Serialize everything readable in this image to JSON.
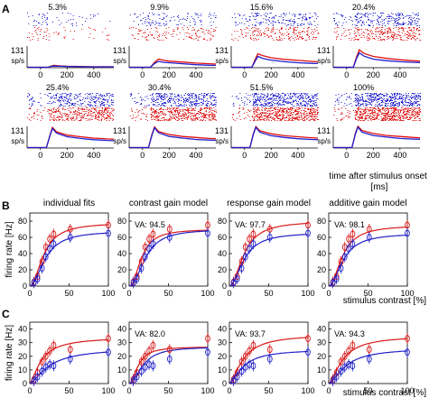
{
  "panel_labels": [
    "A",
    "B",
    "C"
  ],
  "chart_data": [
    {
      "type": "line",
      "panel": "A",
      "title": "",
      "ylabel_value": "131",
      "ylabel_unit": "sp/s",
      "xlabel": "time after stimulus onset [ms]",
      "x_ticks": [
        0,
        200,
        400
      ],
      "xlim": [
        -100,
        550
      ],
      "ylim": [
        0,
        131
      ],
      "colors": {
        "series1": "#1f1fd0",
        "series2": "#e01010"
      },
      "subpanels": [
        {
          "contrast": "5.3%",
          "raster_visible": true,
          "series1": [
            [
              -100,
              3
            ],
            [
              0,
              3
            ],
            [
              60,
              3
            ],
            [
              80,
              8
            ],
            [
              100,
              10
            ],
            [
              150,
              9
            ],
            [
              200,
              7
            ],
            [
              300,
              6
            ],
            [
              400,
              5
            ],
            [
              500,
              5
            ],
            [
              550,
              5
            ]
          ],
          "series2": [
            [
              -100,
              3
            ],
            [
              0,
              3
            ],
            [
              60,
              3
            ],
            [
              80,
              10
            ],
            [
              100,
              14
            ],
            [
              150,
              11
            ],
            [
              200,
              9
            ],
            [
              300,
              7
            ],
            [
              400,
              6
            ],
            [
              500,
              6
            ],
            [
              550,
              6
            ]
          ]
        },
        {
          "contrast": "9.9%",
          "raster_visible": true,
          "series1": [
            [
              -100,
              3
            ],
            [
              0,
              3
            ],
            [
              60,
              3
            ],
            [
              90,
              25
            ],
            [
              120,
              38
            ],
            [
              160,
              32
            ],
            [
              200,
              30
            ],
            [
              300,
              24
            ],
            [
              400,
              18
            ],
            [
              500,
              15
            ],
            [
              550,
              14
            ]
          ],
          "series2": [
            [
              -100,
              3
            ],
            [
              0,
              3
            ],
            [
              60,
              3
            ],
            [
              90,
              32
            ],
            [
              120,
              52
            ],
            [
              160,
              44
            ],
            [
              200,
              40
            ],
            [
              300,
              34
            ],
            [
              400,
              28
            ],
            [
              500,
              24
            ],
            [
              550,
              22
            ]
          ]
        },
        {
          "contrast": "15.6%",
          "raster_visible": true,
          "series1": [
            [
              -100,
              3
            ],
            [
              0,
              3
            ],
            [
              55,
              3
            ],
            [
              80,
              40
            ],
            [
              100,
              68
            ],
            [
              140,
              55
            ],
            [
              200,
              46
            ],
            [
              300,
              36
            ],
            [
              400,
              30
            ],
            [
              500,
              26
            ],
            [
              550,
              25
            ]
          ],
          "series2": [
            [
              -100,
              3
            ],
            [
              0,
              3
            ],
            [
              55,
              3
            ],
            [
              80,
              50
            ],
            [
              100,
              84
            ],
            [
              140,
              72
            ],
            [
              200,
              60
            ],
            [
              300,
              50
            ],
            [
              400,
              44
            ],
            [
              500,
              38
            ],
            [
              550,
              36
            ]
          ]
        },
        {
          "contrast": "20.4%",
          "raster_visible": true,
          "series1": [
            [
              -100,
              3
            ],
            [
              0,
              3
            ],
            [
              50,
              3
            ],
            [
              75,
              55
            ],
            [
              95,
              90
            ],
            [
              130,
              70
            ],
            [
              200,
              52
            ],
            [
              300,
              42
            ],
            [
              400,
              36
            ],
            [
              500,
              32
            ],
            [
              550,
              31
            ]
          ],
          "series2": [
            [
              -100,
              3
            ],
            [
              0,
              3
            ],
            [
              50,
              3
            ],
            [
              75,
              65
            ],
            [
              95,
              108
            ],
            [
              130,
              86
            ],
            [
              200,
              68
            ],
            [
              300,
              56
            ],
            [
              400,
              48
            ],
            [
              500,
              42
            ],
            [
              550,
              40
            ]
          ]
        },
        {
          "contrast": "25.4%",
          "raster_visible": true,
          "series1": [
            [
              -100,
              3
            ],
            [
              0,
              3
            ],
            [
              45,
              3
            ],
            [
              70,
              70
            ],
            [
              90,
              118
            ],
            [
              120,
              90
            ],
            [
              200,
              68
            ],
            [
              300,
              58
            ],
            [
              400,
              50
            ],
            [
              500,
              46
            ],
            [
              550,
              45
            ]
          ],
          "series2": [
            [
              -100,
              3
            ],
            [
              0,
              3
            ],
            [
              45,
              3
            ],
            [
              70,
              75
            ],
            [
              90,
              125
            ],
            [
              120,
              98
            ],
            [
              200,
              78
            ],
            [
              300,
              68
            ],
            [
              400,
              60
            ],
            [
              500,
              55
            ],
            [
              550,
              54
            ]
          ]
        },
        {
          "contrast": "30.4%",
          "raster_visible": true,
          "series1": [
            [
              -100,
              3
            ],
            [
              0,
              3
            ],
            [
              45,
              3
            ],
            [
              70,
              75
            ],
            [
              90,
              122
            ],
            [
              120,
              92
            ],
            [
              200,
              70
            ],
            [
              300,
              60
            ],
            [
              400,
              52
            ],
            [
              500,
              48
            ],
            [
              550,
              47
            ]
          ],
          "series2": [
            [
              -100,
              3
            ],
            [
              0,
              3
            ],
            [
              45,
              3
            ],
            [
              70,
              80
            ],
            [
              90,
              128
            ],
            [
              120,
              100
            ],
            [
              200,
              82
            ],
            [
              300,
              70
            ],
            [
              400,
              64
            ],
            [
              500,
              58
            ],
            [
              550,
              57
            ]
          ]
        },
        {
          "contrast": "51.5%",
          "raster_visible": true,
          "series1": [
            [
              -100,
              3
            ],
            [
              0,
              3
            ],
            [
              40,
              3
            ],
            [
              65,
              80
            ],
            [
              85,
              125
            ],
            [
              115,
              95
            ],
            [
              200,
              74
            ],
            [
              300,
              64
            ],
            [
              400,
              56
            ],
            [
              500,
              52
            ],
            [
              550,
              51
            ]
          ],
          "series2": [
            [
              -100,
              3
            ],
            [
              0,
              3
            ],
            [
              40,
              3
            ],
            [
              65,
              85
            ],
            [
              85,
              130
            ],
            [
              115,
              104
            ],
            [
              200,
              86
            ],
            [
              300,
              74
            ],
            [
              400,
              68
            ],
            [
              500,
              62
            ],
            [
              550,
              60
            ]
          ]
        },
        {
          "contrast": "100%",
          "raster_visible": true,
          "series1": [
            [
              -100,
              3
            ],
            [
              0,
              3
            ],
            [
              40,
              3
            ],
            [
              65,
              82
            ],
            [
              85,
              126
            ],
            [
              115,
              96
            ],
            [
              200,
              76
            ],
            [
              300,
              66
            ],
            [
              400,
              58
            ],
            [
              500,
              54
            ],
            [
              550,
              53
            ]
          ],
          "series2": [
            [
              -100,
              3
            ],
            [
              0,
              3
            ],
            [
              40,
              3
            ],
            [
              65,
              88
            ],
            [
              85,
              131
            ],
            [
              115,
              106
            ],
            [
              200,
              88
            ],
            [
              300,
              76
            ],
            [
              400,
              70
            ],
            [
              500,
              64
            ],
            [
              550,
              62
            ]
          ]
        }
      ]
    },
    {
      "type": "scatter",
      "panel": "B",
      "ylabel": "firing rate [Hz]",
      "xlabel": "stimulus contrast [%]",
      "xlim": [
        0,
        100
      ],
      "ylim": [
        0,
        90
      ],
      "x_ticks": [
        0,
        50,
        100
      ],
      "y_ticks": [
        0,
        20,
        40,
        60,
        80
      ],
      "x": [
        5.3,
        9.9,
        15.6,
        20.4,
        25.4,
        30.4,
        51.5,
        100
      ],
      "subplots": [
        {
          "title": "individual fits",
          "va": "",
          "red_points": [
            5,
            12,
            30,
            48,
            58,
            64,
            70,
            75
          ],
          "blue_points": [
            4,
            9,
            22,
            36,
            46,
            52,
            60,
            65
          ],
          "red_fit": {
            "rmax": 78,
            "c50": 18,
            "n": 2.0
          },
          "blue_fit": {
            "rmax": 68,
            "c50": 20,
            "n": 2.0
          }
        },
        {
          "title": "contrast gain model",
          "va": "VA: 94.5",
          "red_points": [
            5,
            12,
            30,
            48,
            58,
            64,
            70,
            75
          ],
          "blue_points": [
            4,
            9,
            22,
            36,
            46,
            52,
            60,
            65
          ],
          "red_fit": {
            "rmax": 70,
            "c50": 16,
            "n": 2.2
          },
          "blue_fit": {
            "rmax": 70,
            "c50": 21,
            "n": 2.2
          }
        },
        {
          "title": "response gain model",
          "va": "VA: 97.7",
          "red_points": [
            5,
            12,
            30,
            48,
            58,
            64,
            70,
            75
          ],
          "blue_points": [
            4,
            9,
            22,
            36,
            46,
            52,
            60,
            65
          ],
          "red_fit": {
            "rmax": 80,
            "c50": 19,
            "n": 2.0
          },
          "blue_fit": {
            "rmax": 66,
            "c50": 19,
            "n": 2.0
          }
        },
        {
          "title": "additive gain model",
          "va": "VA: 98.1",
          "red_points": [
            5,
            12,
            30,
            48,
            58,
            64,
            70,
            75
          ],
          "blue_points": [
            4,
            9,
            22,
            36,
            46,
            52,
            60,
            65
          ],
          "red_fit": {
            "rmax": 75,
            "c50": 18,
            "n": 2.0
          },
          "blue_fit": {
            "rmax": 65,
            "c50": 19,
            "n": 2.0
          }
        }
      ]
    },
    {
      "type": "scatter",
      "panel": "C",
      "ylabel": "firing rate [Hz]",
      "xlabel": "stimulus contrast [%]",
      "xlim": [
        0,
        100
      ],
      "ylim": [
        0,
        45
      ],
      "x_ticks": [
        0,
        50,
        100
      ],
      "y_ticks": [
        0,
        10,
        20,
        30,
        40
      ],
      "x": [
        5.3,
        9.9,
        15.6,
        20.4,
        25.4,
        30.4,
        51.5,
        100
      ],
      "subplots": [
        {
          "title": "",
          "va": "",
          "red_points": [
            3,
            8,
            16,
            20,
            24,
            28,
            25,
            33
          ],
          "blue_points": [
            2,
            5,
            9,
            12,
            14,
            13,
            18,
            23
          ],
          "red_fit": {
            "rmax": 34,
            "c50": 15,
            "n": 1.5
          },
          "blue_fit": {
            "rmax": 26,
            "c50": 25,
            "n": 1.5
          }
        },
        {
          "title": "",
          "va": "VA: 82.0",
          "red_points": [
            3,
            8,
            16,
            20,
            24,
            28,
            25,
            33
          ],
          "blue_points": [
            2,
            5,
            9,
            12,
            14,
            13,
            18,
            23
          ],
          "red_fit": {
            "rmax": 27,
            "c50": 12,
            "n": 2.0
          },
          "blue_fit": {
            "rmax": 27,
            "c50": 18,
            "n": 2.0
          }
        },
        {
          "title": "",
          "va": "VA: 93.7",
          "red_points": [
            3,
            8,
            16,
            20,
            24,
            28,
            25,
            33
          ],
          "blue_points": [
            2,
            5,
            9,
            12,
            14,
            13,
            18,
            23
          ],
          "red_fit": {
            "rmax": 36,
            "c50": 18,
            "n": 1.6
          },
          "blue_fit": {
            "rmax": 25,
            "c50": 18,
            "n": 1.6
          }
        },
        {
          "title": "",
          "va": "VA: 94.3",
          "red_points": [
            3,
            8,
            16,
            20,
            24,
            28,
            25,
            33
          ],
          "blue_points": [
            2,
            5,
            9,
            12,
            14,
            13,
            18,
            23
          ],
          "red_fit": {
            "rmax": 35,
            "c50": 18,
            "n": 1.6
          },
          "blue_fit": {
            "rmax": 26,
            "c50": 22,
            "n": 1.6
          }
        }
      ]
    }
  ]
}
